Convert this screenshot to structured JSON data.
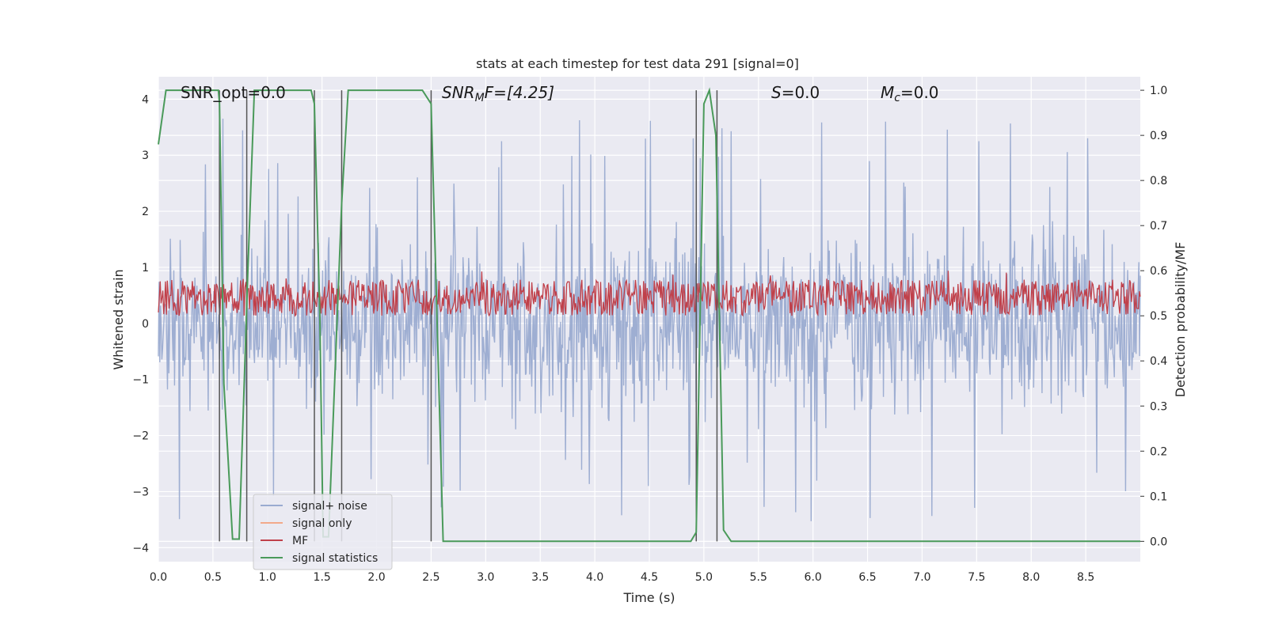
{
  "chart_data": {
    "type": "line",
    "title": "stats at each timestep for test data 291 [signal=0]",
    "xlabel": "Time (s)",
    "ylabel": "Whitened strain",
    "y2label": "Detection probability/MF",
    "xlim": [
      0.0,
      9.0
    ],
    "ylim": [
      -4.25,
      4.4
    ],
    "y2lim": [
      -0.045,
      1.03
    ],
    "xticks": [
      "0.0",
      "0.5",
      "1.0",
      "1.5",
      "2.0",
      "2.5",
      "3.0",
      "3.5",
      "4.0",
      "4.5",
      "5.0",
      "5.5",
      "6.0",
      "6.5",
      "7.0",
      "7.5",
      "8.0",
      "8.5"
    ],
    "yticks": [
      "4",
      "3",
      "2",
      "1",
      "0",
      "−1",
      "−2",
      "−3",
      "−4"
    ],
    "y2ticks": [
      "1.0",
      "0.9",
      "0.8",
      "0.7",
      "0.6",
      "0.5",
      "0.4",
      "0.3",
      "0.2",
      "0.1",
      "0.0"
    ],
    "grid": true,
    "annotations": {
      "snr_opt": "SNR_opt=0.0",
      "snr_mf": "SNR",
      "snr_mf_sub": "M",
      "snr_mf_rest": "F=[4.25]",
      "s": "S",
      "s_rest": "=0.0",
      "mc": "M",
      "mc_sub": "c",
      "mc_rest": "=0.0"
    },
    "legend": {
      "position": "lower-left",
      "entries": [
        {
          "label": "signal+ noise",
          "color": "#9aabd0"
        },
        {
          "label": "signal only",
          "color": "#f2a98a"
        },
        {
          "label": "MF",
          "color": "#c0404a"
        },
        {
          "label": "signal statistics",
          "color": "#4a9a5a"
        }
      ]
    },
    "series": [
      {
        "name": "signal statistics",
        "color": "#4a9a5a",
        "x": [
          0.0,
          0.07,
          0.55,
          0.56,
          0.6,
          0.68,
          0.74,
          0.82,
          0.88,
          1.4,
          1.43,
          1.48,
          1.51,
          1.56,
          1.68,
          1.74,
          2.42,
          2.5,
          2.61,
          4.88,
          4.93,
          5.0,
          5.05,
          5.11,
          5.18,
          5.25,
          9.0
        ],
        "y": [
          0.88,
          1.0,
          1.0,
          0.97,
          0.35,
          0.005,
          0.005,
          0.6,
          1.0,
          1.0,
          0.97,
          0.5,
          0.01,
          0.01,
          0.75,
          1.0,
          1.0,
          0.97,
          0.0,
          0.0,
          0.02,
          0.97,
          1.0,
          0.9,
          0.025,
          0.0,
          0.0
        ]
      },
      {
        "name": "vertical markers",
        "color": "#555555",
        "x": [
          0.56,
          0.81,
          1.43,
          1.68,
          2.5,
          4.93,
          5.12
        ]
      }
    ],
    "noise": {
      "name": "signal+ noise",
      "color": "#9aabd0",
      "base_range": [
        -2.2,
        2.3
      ],
      "peaks": [
        3.9,
        -3.7
      ]
    },
    "mf": {
      "name": "MF",
      "color": "#c0404a",
      "range": [
        0.5,
        0.58
      ],
      "peak": 0.6
    }
  }
}
